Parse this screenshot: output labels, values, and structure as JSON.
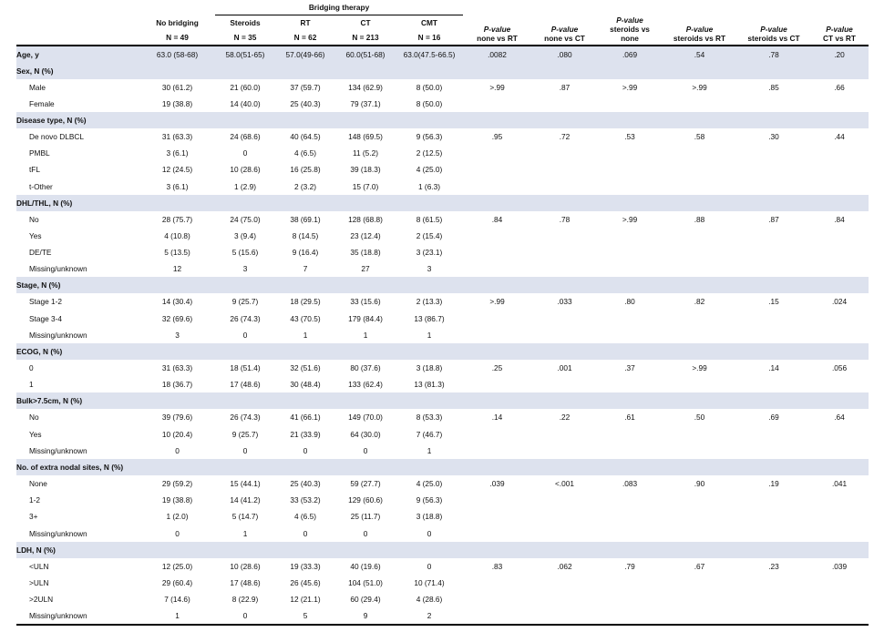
{
  "header": {
    "group_label": "Bridging therapy",
    "columns": [
      {
        "name": "No bridging",
        "n": "N = 49"
      },
      {
        "name": "Steroids",
        "n": "N = 35"
      },
      {
        "name": "RT",
        "n": "N = 62"
      },
      {
        "name": "CT",
        "n": "N = 213"
      },
      {
        "name": "CMT",
        "n": "N = 16"
      }
    ],
    "pvalue_columns": [
      {
        "italic": "P-value",
        "rest1": "none vs RT",
        "rest0": ""
      },
      {
        "italic": "P-value",
        "rest1": "none vs CT",
        "rest0": ""
      },
      {
        "italic": "P-value",
        "rest0": "steroids vs",
        "rest1": "none"
      },
      {
        "italic": "P-value",
        "rest1": "steroids vs RT",
        "rest0": ""
      },
      {
        "italic": "P-value",
        "rest1": "steroids vs CT",
        "rest0": ""
      },
      {
        "italic": "P-value",
        "rest1": "CT vs RT",
        "rest0": ""
      }
    ]
  },
  "age": {
    "label": "Age, y",
    "values": [
      "63.0 (58-68)",
      "58.0(51-65)",
      "57.0(49-66)",
      "60.0(51-68)",
      "63.0(47.5-66.5)"
    ],
    "pvalues": [
      ".0082",
      ".080",
      ".069",
      ".54",
      ".78",
      ".20"
    ]
  },
  "sections": [
    {
      "title": "Sex, N (%)",
      "rows": [
        {
          "label": "Male",
          "values": [
            "30 (61.2)",
            "21 (60.0)",
            "37 (59.7)",
            "134 (62.9)",
            "8 (50.0)"
          ],
          "pvalues": [
            ">.99",
            ".87",
            ">.99",
            ">.99",
            ".85",
            ".66"
          ]
        },
        {
          "label": "Female",
          "values": [
            "19 (38.8)",
            "14 (40.0)",
            "25 (40.3)",
            "79 (37.1)",
            "8 (50.0)"
          ],
          "pvalues": [
            "",
            "",
            "",
            "",
            "",
            ""
          ]
        }
      ]
    },
    {
      "title": "Disease type, N (%)",
      "rows": [
        {
          "label": "De novo DLBCL",
          "values": [
            "31 (63.3)",
            "24 (68.6)",
            "40 (64.5)",
            "148 (69.5)",
            "9 (56.3)"
          ],
          "pvalues": [
            ".95",
            ".72",
            ".53",
            ".58",
            ".30",
            ".44"
          ]
        },
        {
          "label": "PMBL",
          "values": [
            "3 (6.1)",
            "0",
            "4 (6.5)",
            "11 (5.2)",
            "2 (12.5)"
          ],
          "pvalues": [
            "",
            "",
            "",
            "",
            "",
            ""
          ]
        },
        {
          "label": "tFL",
          "values": [
            "12 (24.5)",
            "10 (28.6)",
            "16 (25.8)",
            "39 (18.3)",
            "4 (25.0)"
          ],
          "pvalues": [
            "",
            "",
            "",
            "",
            "",
            ""
          ]
        },
        {
          "label": "t-Other",
          "values": [
            "3 (6.1)",
            "1 (2.9)",
            "2 (3.2)",
            "15 (7.0)",
            "1 (6.3)"
          ],
          "pvalues": [
            "",
            "",
            "",
            "",
            "",
            ""
          ]
        }
      ]
    },
    {
      "title": "DHL/THL, N (%)",
      "rows": [
        {
          "label": "No",
          "values": [
            "28 (75.7)",
            "24 (75.0)",
            "38 (69.1)",
            "128 (68.8)",
            "8 (61.5)"
          ],
          "pvalues": [
            ".84",
            ".78",
            ">.99",
            ".88",
            ".87",
            ".84"
          ]
        },
        {
          "label": "Yes",
          "values": [
            "4 (10.8)",
            "3 (9.4)",
            "8 (14.5)",
            "23 (12.4)",
            "2 (15.4)"
          ],
          "pvalues": [
            "",
            "",
            "",
            "",
            "",
            ""
          ]
        },
        {
          "label": "DE/TE",
          "values": [
            "5 (13.5)",
            "5 (15.6)",
            "9 (16.4)",
            "35 (18.8)",
            "3 (23.1)"
          ],
          "pvalues": [
            "",
            "",
            "",
            "",
            "",
            ""
          ]
        },
        {
          "label": "Missing/unknown",
          "values": [
            "12",
            "3",
            "7",
            "27",
            "3"
          ],
          "pvalues": [
            "",
            "",
            "",
            "",
            "",
            ""
          ]
        }
      ]
    },
    {
      "title": "Stage, N (%)",
      "rows": [
        {
          "label": "Stage 1-2",
          "values": [
            "14 (30.4)",
            "9 (25.7)",
            "18 (29.5)",
            "33 (15.6)",
            "2 (13.3)"
          ],
          "pvalues": [
            ">.99",
            ".033",
            ".80",
            ".82",
            ".15",
            ".024"
          ]
        },
        {
          "label": "Stage 3-4",
          "values": [
            "32 (69.6)",
            "26 (74.3)",
            "43 (70.5)",
            "179 (84.4)",
            "13 (86.7)"
          ],
          "pvalues": [
            "",
            "",
            "",
            "",
            "",
            ""
          ]
        },
        {
          "label": "Missing/unknown",
          "values": [
            "3",
            "0",
            "1",
            "1",
            "1"
          ],
          "pvalues": [
            "",
            "",
            "",
            "",
            "",
            ""
          ]
        }
      ]
    },
    {
      "title": "ECOG, N (%)",
      "rows": [
        {
          "label": "0",
          "values": [
            "31 (63.3)",
            "18 (51.4)",
            "32 (51.6)",
            "80 (37.6)",
            "3 (18.8)"
          ],
          "pvalues": [
            ".25",
            ".001",
            ".37",
            ">.99",
            ".14",
            ".056"
          ]
        },
        {
          "label": "1",
          "values": [
            "18 (36.7)",
            "17 (48.6)",
            "30 (48.4)",
            "133 (62.4)",
            "13 (81.3)"
          ],
          "pvalues": [
            "",
            "",
            "",
            "",
            "",
            ""
          ]
        }
      ]
    },
    {
      "title": "Bulk>7.5cm, N (%)",
      "rows": [
        {
          "label": "No",
          "values": [
            "39 (79.6)",
            "26 (74.3)",
            "41 (66.1)",
            "149 (70.0)",
            "8 (53.3)"
          ],
          "pvalues": [
            ".14",
            ".22",
            ".61",
            ".50",
            ".69",
            ".64"
          ]
        },
        {
          "label": "Yes",
          "values": [
            "10 (20.4)",
            "9 (25.7)",
            "21 (33.9)",
            "64 (30.0)",
            "7 (46.7)"
          ],
          "pvalues": [
            "",
            "",
            "",
            "",
            "",
            ""
          ]
        },
        {
          "label": "Missing/unknown",
          "values": [
            "0",
            "0",
            "0",
            "0",
            "1"
          ],
          "pvalues": [
            "",
            "",
            "",
            "",
            "",
            ""
          ]
        }
      ]
    },
    {
      "title": "No. of extra nodal sites, N (%)",
      "rows": [
        {
          "label": "None",
          "values": [
            "29 (59.2)",
            "15 (44.1)",
            "25 (40.3)",
            "59 (27.7)",
            "4 (25.0)"
          ],
          "pvalues": [
            ".039",
            "<.001",
            ".083",
            ".90",
            ".19",
            ".041"
          ]
        },
        {
          "label": "1-2",
          "values": [
            "19 (38.8)",
            "14 (41.2)",
            "33 (53.2)",
            "129 (60.6)",
            "9 (56.3)"
          ],
          "pvalues": [
            "",
            "",
            "",
            "",
            "",
            ""
          ]
        },
        {
          "label": "3+",
          "values": [
            "1 (2.0)",
            "5 (14.7)",
            "4 (6.5)",
            "25 (11.7)",
            "3 (18.8)"
          ],
          "pvalues": [
            "",
            "",
            "",
            "",
            "",
            ""
          ]
        },
        {
          "label": "Missing/unknown",
          "values": [
            "0",
            "1",
            "0",
            "0",
            "0"
          ],
          "pvalues": [
            "",
            "",
            "",
            "",
            "",
            ""
          ]
        }
      ]
    },
    {
      "title": "LDH, N (%)",
      "rows": [
        {
          "label": "<ULN",
          "values": [
            "12 (25.0)",
            "10 (28.6)",
            "19 (33.3)",
            "40 (19.6)",
            "0"
          ],
          "pvalues": [
            ".83",
            ".062",
            ".79",
            ".67",
            ".23",
            ".039"
          ]
        },
        {
          "label": ">ULN",
          "values": [
            "29 (60.4)",
            "17 (48.6)",
            "26 (45.6)",
            "104 (51.0)",
            "10 (71.4)"
          ],
          "pvalues": [
            "",
            "",
            "",
            "",
            "",
            ""
          ]
        },
        {
          "label": ">2ULN",
          "values": [
            "7 (14.6)",
            "8 (22.9)",
            "12 (21.1)",
            "60 (29.4)",
            "4 (28.6)"
          ],
          "pvalues": [
            "",
            "",
            "",
            "",
            "",
            ""
          ]
        },
        {
          "label": "Missing/unknown",
          "values": [
            "1",
            "0",
            "5",
            "9",
            "2"
          ],
          "pvalues": [
            "",
            "",
            "",
            "",
            "",
            ""
          ]
        }
      ]
    }
  ]
}
